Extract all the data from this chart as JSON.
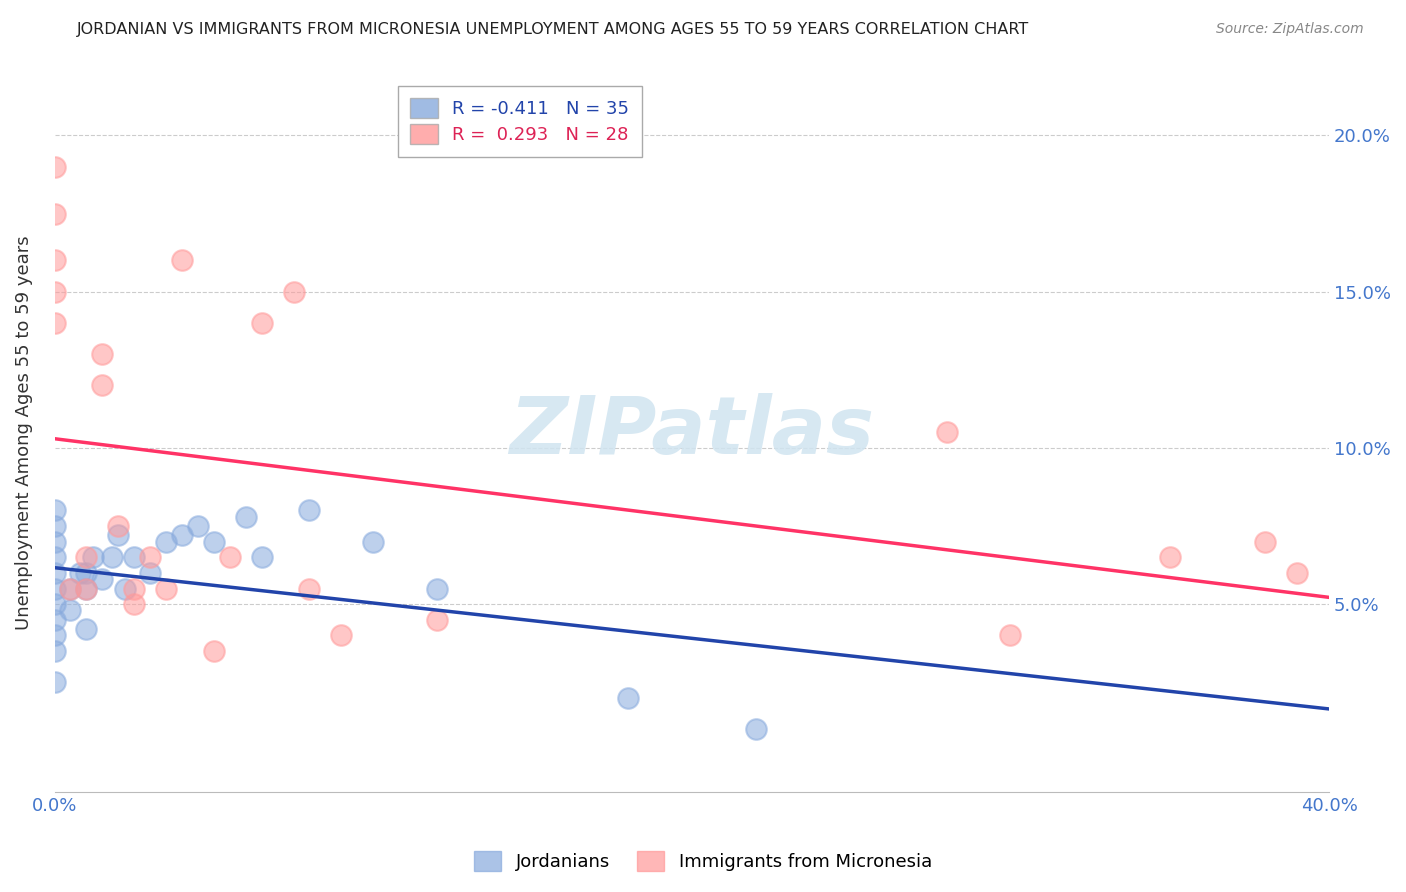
{
  "title": "JORDANIAN VS IMMIGRANTS FROM MICRONESIA UNEMPLOYMENT AMONG AGES 55 TO 59 YEARS CORRELATION CHART",
  "source": "Source: ZipAtlas.com",
  "ylabel": "Unemployment Among Ages 55 to 59 years",
  "xlim": [
    0.0,
    0.4
  ],
  "ylim": [
    -0.01,
    0.22
  ],
  "xticks": [
    0.0,
    0.4
  ],
  "xticklabels": [
    "0.0%",
    "40.0%"
  ],
  "yticks": [
    0.05,
    0.1,
    0.15,
    0.2
  ],
  "yticklabels": [
    "5.0%",
    "10.0%",
    "15.0%",
    "20.0%"
  ],
  "jordanians_x": [
    0.0,
    0.0,
    0.0,
    0.0,
    0.0,
    0.0,
    0.0,
    0.0,
    0.0,
    0.0,
    0.0,
    0.005,
    0.005,
    0.008,
    0.01,
    0.01,
    0.01,
    0.012,
    0.015,
    0.018,
    0.02,
    0.022,
    0.025,
    0.03,
    0.035,
    0.04,
    0.045,
    0.05,
    0.06,
    0.065,
    0.08,
    0.1,
    0.12,
    0.18,
    0.22
  ],
  "jordanians_y": [
    0.06,
    0.065,
    0.055,
    0.05,
    0.045,
    0.04,
    0.035,
    0.07,
    0.075,
    0.08,
    0.025,
    0.055,
    0.048,
    0.06,
    0.06,
    0.055,
    0.042,
    0.065,
    0.058,
    0.065,
    0.072,
    0.055,
    0.065,
    0.06,
    0.07,
    0.072,
    0.075,
    0.07,
    0.078,
    0.065,
    0.08,
    0.07,
    0.055,
    0.02,
    0.01
  ],
  "micronesia_x": [
    0.0,
    0.0,
    0.0,
    0.0,
    0.0,
    0.005,
    0.01,
    0.01,
    0.015,
    0.015,
    0.02,
    0.025,
    0.025,
    0.03,
    0.035,
    0.04,
    0.05,
    0.055,
    0.065,
    0.075,
    0.08,
    0.09,
    0.12,
    0.28,
    0.3,
    0.35,
    0.38,
    0.39
  ],
  "micronesia_y": [
    0.19,
    0.175,
    0.16,
    0.14,
    0.15,
    0.055,
    0.065,
    0.055,
    0.12,
    0.13,
    0.075,
    0.05,
    0.055,
    0.065,
    0.055,
    0.16,
    0.035,
    0.065,
    0.14,
    0.15,
    0.055,
    0.04,
    0.045,
    0.105,
    0.04,
    0.065,
    0.07,
    0.06
  ],
  "jordanians_R": -0.411,
  "jordanians_N": 35,
  "micronesia_R": 0.293,
  "micronesia_N": 28,
  "jordanians_color": "#88AADD",
  "micronesia_color": "#FF9999",
  "trend_jordanians_color": "#2244AA",
  "trend_micronesia_color": "#FF3366",
  "watermark_color": "#D0E4F0",
  "grid_color": "#CCCCCC",
  "background_color": "#FFFFFF",
  "title_color": "#222222",
  "source_color": "#888888",
  "tick_color": "#4477CC",
  "legend_text_jordanians_color": "#2244AA",
  "legend_text_micronesia_color": "#DD2255"
}
